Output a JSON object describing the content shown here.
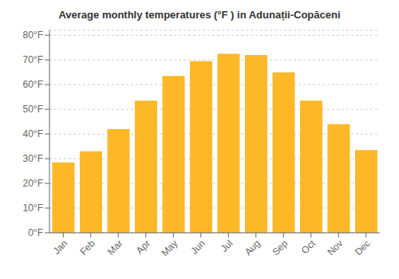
{
  "chart_data": {
    "type": "bar",
    "title": "Average monthly temperatures (°F ) in Adunații-Copăceni",
    "categories": [
      "Jan",
      "Feb",
      "Mar",
      "Apr",
      "May",
      "Jun",
      "Jul",
      "Aug",
      "Sep",
      "Oct",
      "Nov",
      "Dec"
    ],
    "values": [
      28.5,
      33.0,
      42.0,
      53.5,
      63.5,
      69.5,
      72.5,
      72.0,
      65.0,
      53.5,
      44.0,
      33.5
    ],
    "color": "#FDB827",
    "ylim": [
      0,
      82
    ],
    "yticks": [
      {
        "value": 0,
        "label": "0°F"
      },
      {
        "value": 10,
        "label": "10°F"
      },
      {
        "value": 20,
        "label": "20°F"
      },
      {
        "value": 30,
        "label": "30°F"
      },
      {
        "value": 40,
        "label": "40°F"
      },
      {
        "value": 50,
        "label": "50°F"
      },
      {
        "value": 60,
        "label": "60°F"
      },
      {
        "value": 70,
        "label": "70°F"
      },
      {
        "value": 80,
        "label": "80°F"
      }
    ],
    "grid": true
  }
}
